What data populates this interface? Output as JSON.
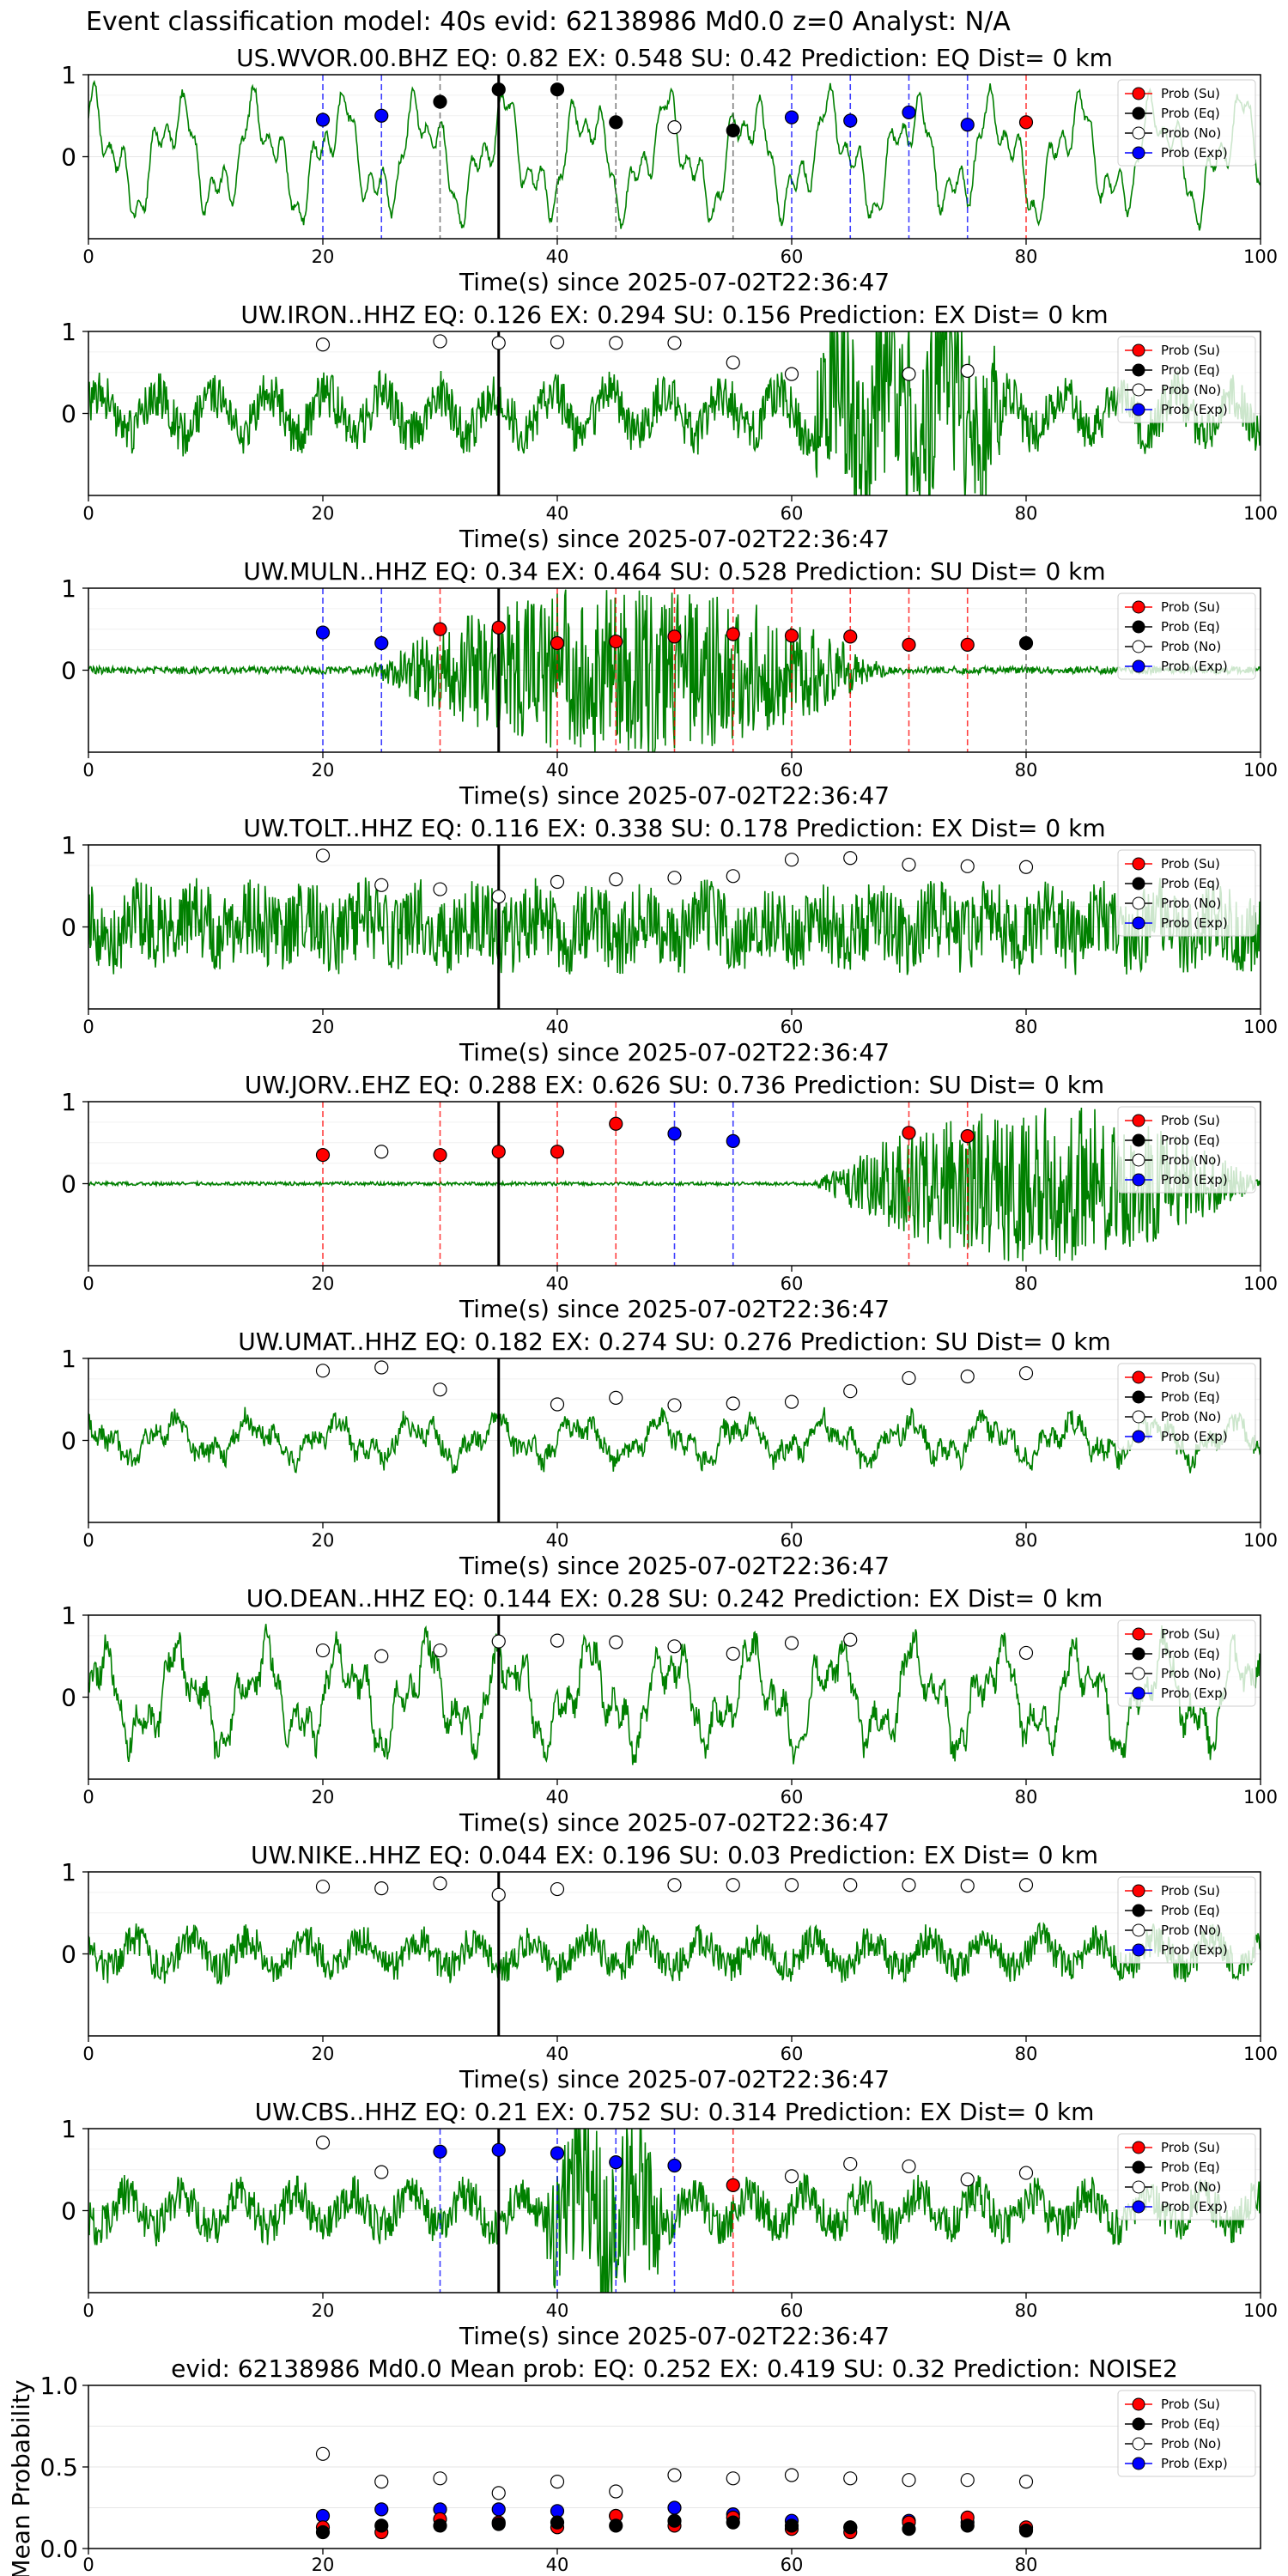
{
  "figure": {
    "suptitle": "Event classification model: 40s evid: 62138986 Md0.0 z=0 Analyst: N/A"
  },
  "legend_labels": [
    "Prob (Su)",
    "Prob (Eq)",
    "Prob (No)",
    "Prob (Exp)"
  ],
  "colors": {
    "su": "#ff0000",
    "eq": "#000000",
    "no": "#ffffff",
    "exp": "#0000ff",
    "waveform": "#008000",
    "event_line": "#000000"
  },
  "chart_data": [
    {
      "type": "line",
      "title": "US.WVOR.00.BHZ   EQ: 0.82  EX: 0.548  SU: 0.42   Prediction: EQ    Dist= 0 km",
      "xlabel": "Time(s) since 2025-07-02T22:36:47",
      "ylabel": "",
      "xlim": [
        0,
        100
      ],
      "ylim": [
        -1,
        1
      ],
      "xticks": [
        0,
        20,
        40,
        60,
        80,
        100
      ],
      "yticks": [
        0,
        1
      ],
      "grid": "horizontal",
      "legend": "top-right",
      "event_time": 35,
      "waveform": {
        "style": "lowfreq",
        "amp": 0.85,
        "noise": 0.05,
        "seed": 11
      },
      "points": [
        {
          "x": 20,
          "y": 0.45,
          "cls": "exp"
        },
        {
          "x": 25,
          "y": 0.5,
          "cls": "exp"
        },
        {
          "x": 30,
          "y": 0.67,
          "cls": "eq"
        },
        {
          "x": 35,
          "y": 0.82,
          "cls": "eq"
        },
        {
          "x": 40,
          "y": 0.82,
          "cls": "eq"
        },
        {
          "x": 45,
          "y": 0.42,
          "cls": "eq"
        },
        {
          "x": 50,
          "y": 0.36,
          "cls": "no"
        },
        {
          "x": 55,
          "y": 0.32,
          "cls": "eq"
        },
        {
          "x": 60,
          "y": 0.48,
          "cls": "exp"
        },
        {
          "x": 65,
          "y": 0.44,
          "cls": "exp"
        },
        {
          "x": 70,
          "y": 0.54,
          "cls": "exp"
        },
        {
          "x": 75,
          "y": 0.39,
          "cls": "exp"
        },
        {
          "x": 80,
          "y": 0.42,
          "cls": "su"
        }
      ]
    },
    {
      "type": "line",
      "title": "UW.IRON..HHZ   EQ: 0.126  EX: 0.294  SU: 0.156   Prediction: EX    Dist= 0 km",
      "xlabel": "Time(s) since 2025-07-02T22:36:47",
      "ylabel": "",
      "xlim": [
        0,
        100
      ],
      "ylim": [
        -1,
        1
      ],
      "xticks": [
        0,
        20,
        40,
        60,
        80,
        100
      ],
      "yticks": [
        0,
        1
      ],
      "grid": "horizontal",
      "legend": "top-right",
      "event_time": 35,
      "waveform": {
        "style": "noisy",
        "amp": 0.5,
        "noise": 0.35,
        "seed": 23,
        "burst": [
          60,
          80,
          1.4
        ]
      },
      "points": [
        {
          "x": 20,
          "y": 0.84,
          "cls": "no"
        },
        {
          "x": 30,
          "y": 0.88,
          "cls": "no"
        },
        {
          "x": 35,
          "y": 0.86,
          "cls": "no"
        },
        {
          "x": 40,
          "y": 0.87,
          "cls": "no"
        },
        {
          "x": 45,
          "y": 0.86,
          "cls": "no"
        },
        {
          "x": 50,
          "y": 0.86,
          "cls": "no"
        },
        {
          "x": 55,
          "y": 0.62,
          "cls": "no"
        },
        {
          "x": 60,
          "y": 0.48,
          "cls": "no"
        },
        {
          "x": 70,
          "y": 0.48,
          "cls": "no"
        },
        {
          "x": 75,
          "y": 0.52,
          "cls": "no"
        }
      ]
    },
    {
      "type": "line",
      "title": "UW.MULN..HHZ   EQ: 0.34  EX: 0.464  SU: 0.528   Prediction: SU    Dist= 0 km",
      "xlabel": "Time(s) since 2025-07-02T22:36:47",
      "ylabel": "",
      "xlim": [
        0,
        100
      ],
      "ylim": [
        -1,
        1
      ],
      "xticks": [
        0,
        20,
        40,
        60,
        80,
        100
      ],
      "yticks": [
        0,
        1
      ],
      "grid": "horizontal",
      "legend": "top-right",
      "event_time": 35,
      "waveform": {
        "style": "quiet",
        "amp": 0.04,
        "noise": 0.05,
        "seed": 37,
        "burst": [
          24,
          68,
          1.0
        ]
      },
      "points": [
        {
          "x": 20,
          "y": 0.46,
          "cls": "exp"
        },
        {
          "x": 25,
          "y": 0.33,
          "cls": "exp"
        },
        {
          "x": 30,
          "y": 0.5,
          "cls": "su"
        },
        {
          "x": 35,
          "y": 0.52,
          "cls": "su"
        },
        {
          "x": 40,
          "y": 0.33,
          "cls": "su"
        },
        {
          "x": 45,
          "y": 0.35,
          "cls": "su"
        },
        {
          "x": 50,
          "y": 0.41,
          "cls": "su"
        },
        {
          "x": 55,
          "y": 0.44,
          "cls": "su"
        },
        {
          "x": 60,
          "y": 0.42,
          "cls": "su"
        },
        {
          "x": 65,
          "y": 0.41,
          "cls": "su"
        },
        {
          "x": 70,
          "y": 0.31,
          "cls": "su"
        },
        {
          "x": 75,
          "y": 0.31,
          "cls": "su"
        },
        {
          "x": 80,
          "y": 0.33,
          "cls": "eq"
        }
      ]
    },
    {
      "type": "line",
      "title": "UW.TOLT..HHZ   EQ: 0.116  EX: 0.338  SU: 0.178   Prediction: EX    Dist= 0 km",
      "xlabel": "Time(s) since 2025-07-02T22:36:47",
      "ylabel": "",
      "xlim": [
        0,
        100
      ],
      "ylim": [
        -1,
        1
      ],
      "xticks": [
        0,
        20,
        40,
        60,
        80,
        100
      ],
      "yticks": [
        0,
        1
      ],
      "grid": "horizontal",
      "legend": "top-right",
      "event_time": 35,
      "waveform": {
        "style": "noisy",
        "amp": 0.25,
        "noise": 0.6,
        "seed": 41
      },
      "points": [
        {
          "x": 20,
          "y": 0.87,
          "cls": "no"
        },
        {
          "x": 25,
          "y": 0.51,
          "cls": "no"
        },
        {
          "x": 30,
          "y": 0.46,
          "cls": "no"
        },
        {
          "x": 35,
          "y": 0.37,
          "cls": "no"
        },
        {
          "x": 40,
          "y": 0.55,
          "cls": "no"
        },
        {
          "x": 45,
          "y": 0.58,
          "cls": "no"
        },
        {
          "x": 50,
          "y": 0.6,
          "cls": "no"
        },
        {
          "x": 55,
          "y": 0.62,
          "cls": "no"
        },
        {
          "x": 60,
          "y": 0.82,
          "cls": "no"
        },
        {
          "x": 65,
          "y": 0.84,
          "cls": "no"
        },
        {
          "x": 70,
          "y": 0.76,
          "cls": "no"
        },
        {
          "x": 75,
          "y": 0.74,
          "cls": "no"
        },
        {
          "x": 80,
          "y": 0.73,
          "cls": "no"
        }
      ]
    },
    {
      "type": "line",
      "title": "UW.JORV..EHZ   EQ: 0.288  EX: 0.626  SU: 0.736   Prediction: SU    Dist= 0 km",
      "xlabel": "Time(s) since 2025-07-02T22:36:47",
      "ylabel": "",
      "xlim": [
        0,
        100
      ],
      "ylim": [
        -1,
        1
      ],
      "xticks": [
        0,
        20,
        40,
        60,
        80,
        100
      ],
      "yticks": [
        0,
        1
      ],
      "grid": "horizontal",
      "legend": "top-right",
      "event_time": 35,
      "waveform": {
        "style": "quiet",
        "amp": 0.02,
        "noise": 0.02,
        "seed": 53,
        "burst": [
          62,
          100,
          0.95
        ]
      },
      "points": [
        {
          "x": 20,
          "y": 0.35,
          "cls": "su"
        },
        {
          "x": 25,
          "y": 0.39,
          "cls": "no"
        },
        {
          "x": 30,
          "y": 0.35,
          "cls": "su"
        },
        {
          "x": 35,
          "y": 0.39,
          "cls": "su"
        },
        {
          "x": 40,
          "y": 0.39,
          "cls": "su"
        },
        {
          "x": 45,
          "y": 0.73,
          "cls": "su"
        },
        {
          "x": 50,
          "y": 0.61,
          "cls": "exp"
        },
        {
          "x": 55,
          "y": 0.52,
          "cls": "exp"
        },
        {
          "x": 70,
          "y": 0.62,
          "cls": "su"
        },
        {
          "x": 75,
          "y": 0.58,
          "cls": "su"
        }
      ]
    },
    {
      "type": "line",
      "title": "UW.UMAT..HHZ   EQ: 0.182  EX: 0.274  SU: 0.276   Prediction: SU    Dist= 0 km",
      "xlabel": "Time(s) since 2025-07-02T22:36:47",
      "ylabel": "",
      "xlim": [
        0,
        100
      ],
      "ylim": [
        -1,
        1
      ],
      "xticks": [
        0,
        20,
        40,
        60,
        80,
        100
      ],
      "yticks": [
        0,
        1
      ],
      "grid": "horizontal",
      "legend": "top-right",
      "event_time": 35,
      "waveform": {
        "style": "lowfreq",
        "amp": 0.3,
        "noise": 0.12,
        "seed": 67
      },
      "points": [
        {
          "x": 20,
          "y": 0.85,
          "cls": "no"
        },
        {
          "x": 25,
          "y": 0.89,
          "cls": "no"
        },
        {
          "x": 30,
          "y": 0.62,
          "cls": "no"
        },
        {
          "x": 40,
          "y": 0.44,
          "cls": "no"
        },
        {
          "x": 45,
          "y": 0.52,
          "cls": "no"
        },
        {
          "x": 50,
          "y": 0.43,
          "cls": "no"
        },
        {
          "x": 55,
          "y": 0.45,
          "cls": "no"
        },
        {
          "x": 60,
          "y": 0.47,
          "cls": "no"
        },
        {
          "x": 65,
          "y": 0.6,
          "cls": "no"
        },
        {
          "x": 70,
          "y": 0.76,
          "cls": "no"
        },
        {
          "x": 75,
          "y": 0.78,
          "cls": "no"
        },
        {
          "x": 80,
          "y": 0.82,
          "cls": "no"
        }
      ]
    },
    {
      "type": "line",
      "title": "UO.DEAN..HHZ   EQ: 0.144  EX: 0.28  SU: 0.242   Prediction: EX    Dist= 0 km",
      "xlabel": "Time(s) since 2025-07-02T22:36:47",
      "ylabel": "",
      "xlim": [
        0,
        100
      ],
      "ylim": [
        -1,
        1
      ],
      "xticks": [
        0,
        20,
        40,
        60,
        80,
        100
      ],
      "yticks": [
        0,
        1
      ],
      "grid": "horizontal",
      "legend": "top-right",
      "event_time": 35,
      "waveform": {
        "style": "lowfreq",
        "amp": 0.75,
        "noise": 0.15,
        "seed": 79
      },
      "points": [
        {
          "x": 20,
          "y": 0.57,
          "cls": "no"
        },
        {
          "x": 25,
          "y": 0.5,
          "cls": "no"
        },
        {
          "x": 30,
          "y": 0.57,
          "cls": "no"
        },
        {
          "x": 35,
          "y": 0.68,
          "cls": "no"
        },
        {
          "x": 40,
          "y": 0.69,
          "cls": "no"
        },
        {
          "x": 45,
          "y": 0.67,
          "cls": "no"
        },
        {
          "x": 50,
          "y": 0.62,
          "cls": "no"
        },
        {
          "x": 55,
          "y": 0.53,
          "cls": "no"
        },
        {
          "x": 60,
          "y": 0.66,
          "cls": "no"
        },
        {
          "x": 65,
          "y": 0.7,
          "cls": "no"
        },
        {
          "x": 80,
          "y": 0.54,
          "cls": "no"
        }
      ]
    },
    {
      "type": "line",
      "title": "UW.NIKE..HHZ   EQ: 0.044  EX: 0.196  SU: 0.03   Prediction: EX    Dist= 0 km",
      "xlabel": "Time(s) since 2025-07-02T22:36:47",
      "ylabel": "",
      "xlim": [
        0,
        100
      ],
      "ylim": [
        -1,
        1
      ],
      "xticks": [
        0,
        20,
        40,
        60,
        80,
        100
      ],
      "yticks": [
        0,
        1
      ],
      "grid": "horizontal",
      "legend": "top-right",
      "event_time": 35,
      "waveform": {
        "style": "noisy",
        "amp": 0.35,
        "noise": 0.25,
        "seed": 97
      },
      "points": [
        {
          "x": 20,
          "y": 0.82,
          "cls": "no"
        },
        {
          "x": 25,
          "y": 0.8,
          "cls": "no"
        },
        {
          "x": 30,
          "y": 0.86,
          "cls": "no"
        },
        {
          "x": 35,
          "y": 0.72,
          "cls": "no"
        },
        {
          "x": 40,
          "y": 0.79,
          "cls": "no"
        },
        {
          "x": 50,
          "y": 0.84,
          "cls": "no"
        },
        {
          "x": 55,
          "y": 0.84,
          "cls": "no"
        },
        {
          "x": 60,
          "y": 0.84,
          "cls": "no"
        },
        {
          "x": 65,
          "y": 0.84,
          "cls": "no"
        },
        {
          "x": 70,
          "y": 0.84,
          "cls": "no"
        },
        {
          "x": 75,
          "y": 0.83,
          "cls": "no"
        },
        {
          "x": 80,
          "y": 0.84,
          "cls": "no"
        }
      ]
    },
    {
      "type": "line",
      "title": "UW.CBS..HHZ   EQ: 0.21  EX: 0.752  SU: 0.314   Prediction: EX    Dist= 0 km",
      "xlabel": "Time(s) since 2025-07-02T22:36:47",
      "ylabel": "",
      "xlim": [
        0,
        100
      ],
      "ylim": [
        -1,
        1
      ],
      "xticks": [
        0,
        20,
        40,
        60,
        80,
        100
      ],
      "yticks": [
        0,
        1
      ],
      "grid": "horizontal",
      "legend": "top-right",
      "event_time": 35,
      "waveform": {
        "style": "noisy",
        "amp": 0.4,
        "noise": 0.3,
        "seed": 113,
        "burst": [
          38,
          50,
          1.2
        ]
      },
      "points": [
        {
          "x": 20,
          "y": 0.83,
          "cls": "no"
        },
        {
          "x": 25,
          "y": 0.47,
          "cls": "no"
        },
        {
          "x": 30,
          "y": 0.72,
          "cls": "exp"
        },
        {
          "x": 35,
          "y": 0.74,
          "cls": "exp"
        },
        {
          "x": 40,
          "y": 0.7,
          "cls": "exp"
        },
        {
          "x": 45,
          "y": 0.59,
          "cls": "exp"
        },
        {
          "x": 50,
          "y": 0.55,
          "cls": "exp"
        },
        {
          "x": 55,
          "y": 0.31,
          "cls": "su"
        },
        {
          "x": 60,
          "y": 0.42,
          "cls": "no"
        },
        {
          "x": 65,
          "y": 0.57,
          "cls": "no"
        },
        {
          "x": 70,
          "y": 0.54,
          "cls": "no"
        },
        {
          "x": 75,
          "y": 0.38,
          "cls": "no"
        },
        {
          "x": 80,
          "y": 0.46,
          "cls": "no"
        }
      ]
    },
    {
      "type": "scatter",
      "title": "evid: 62138986  Md0.0   Mean prob:    EQ: 0.252  EX: 0.419  SU: 0.32   Prediction: NOISE2",
      "xlabel": "",
      "ylabel": "Mean Probability",
      "xlim": [
        0,
        100
      ],
      "ylim": [
        0,
        1
      ],
      "xticks": [
        0,
        20,
        40,
        60,
        80
      ],
      "yticks": [
        0.0,
        0.5,
        1.0
      ],
      "ytick_labels": [
        "0.0",
        "0.5",
        "1.0"
      ],
      "grid": "horizontal",
      "legend": "top-right",
      "x": [
        20,
        25,
        30,
        35,
        40,
        45,
        50,
        55,
        60,
        65,
        70,
        75,
        80
      ],
      "series": [
        {
          "cls": "no",
          "values": [
            0.58,
            0.41,
            0.43,
            0.34,
            0.41,
            0.35,
            0.45,
            0.43,
            0.45,
            0.43,
            0.42,
            0.42,
            0.41
          ]
        },
        {
          "cls": "exp",
          "values": [
            0.2,
            0.24,
            0.24,
            0.24,
            0.23,
            0.2,
            0.25,
            0.21,
            0.17,
            0.13,
            0.17,
            0.16,
            0.12
          ]
        },
        {
          "cls": "su",
          "values": [
            0.13,
            0.1,
            0.18,
            0.16,
            0.13,
            0.2,
            0.14,
            0.19,
            0.12,
            0.1,
            0.16,
            0.19,
            0.13
          ]
        },
        {
          "cls": "eq",
          "values": [
            0.1,
            0.14,
            0.14,
            0.15,
            0.16,
            0.14,
            0.17,
            0.16,
            0.14,
            0.13,
            0.12,
            0.14,
            0.11
          ]
        }
      ]
    }
  ]
}
